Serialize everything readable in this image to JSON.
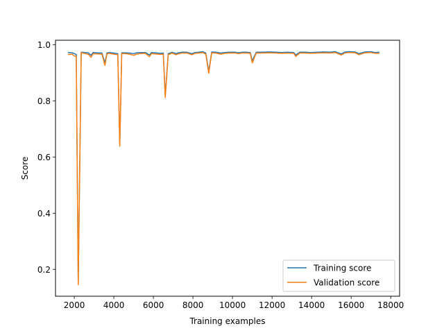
{
  "chart_data": {
    "type": "line",
    "title": "",
    "xlabel": "Training examples",
    "ylabel": "Score",
    "xlim": [
      1050,
      18450
    ],
    "ylim": [
      0.1043,
      1.0157
    ],
    "x_ticks": [
      2000,
      4000,
      6000,
      8000,
      10000,
      12000,
      14000,
      16000,
      18000
    ],
    "x_tick_labels": [
      "2000",
      "4000",
      "6000",
      "8000",
      "10000",
      "12000",
      "14000",
      "16000",
      "18000"
    ],
    "y_ticks": [
      0.2,
      0.4,
      0.6,
      0.8,
      1.0
    ],
    "y_tick_labels": [
      "0.2",
      "0.4",
      "0.6",
      "0.8",
      "1.0"
    ],
    "grid": false,
    "legend": {
      "placement": "lower-right",
      "entries": [
        "Training score",
        "Validation score"
      ]
    },
    "x": [
      1700,
      1900,
      2000,
      2100,
      2200,
      2350,
      2550,
      2700,
      2850,
      2950,
      3150,
      3400,
      3550,
      3650,
      3750,
      4000,
      4200,
      4300,
      4400,
      4550,
      4800,
      5000,
      5150,
      5350,
      5600,
      5800,
      5900,
      6100,
      6350,
      6500,
      6600,
      6750,
      6950,
      7150,
      7250,
      7450,
      7700,
      7950,
      8100,
      8300,
      8500,
      8650,
      8800,
      8950,
      9150,
      9400,
      9600,
      9850,
      10150,
      10300,
      10500,
      10700,
      10900,
      11000,
      11200,
      11500,
      11900,
      12200,
      12500,
      12800,
      13100,
      13200,
      13400,
      13700,
      13950,
      14300,
      14600,
      14900,
      15200,
      15300,
      15500,
      15700,
      15900,
      16200,
      16400,
      16700,
      17000,
      17200,
      17400
    ],
    "series": [
      {
        "name": "Training score",
        "color": "#1f77b4",
        "values": [
          0.972,
          0.971,
          0.968,
          0.965,
          0.15,
          0.973,
          0.972,
          0.971,
          0.962,
          0.972,
          0.971,
          0.97,
          0.935,
          0.97,
          0.972,
          0.97,
          0.968,
          0.645,
          0.971,
          0.971,
          0.97,
          0.968,
          0.971,
          0.972,
          0.972,
          0.963,
          0.972,
          0.971,
          0.969,
          0.97,
          0.82,
          0.968,
          0.973,
          0.968,
          0.971,
          0.973,
          0.973,
          0.968,
          0.972,
          0.973,
          0.975,
          0.97,
          0.905,
          0.974,
          0.973,
          0.97,
          0.972,
          0.973,
          0.973,
          0.971,
          0.973,
          0.973,
          0.972,
          0.942,
          0.973,
          0.973,
          0.974,
          0.973,
          0.972,
          0.973,
          0.972,
          0.963,
          0.973,
          0.973,
          0.972,
          0.973,
          0.974,
          0.973,
          0.975,
          0.972,
          0.967,
          0.974,
          0.975,
          0.974,
          0.968,
          0.974,
          0.975,
          0.972,
          0.973
        ]
      },
      {
        "name": "Validation score",
        "color": "#ff7f0e",
        "values": [
          0.965,
          0.966,
          0.96,
          0.958,
          0.145,
          0.972,
          0.968,
          0.966,
          0.955,
          0.968,
          0.967,
          0.966,
          0.926,
          0.967,
          0.969,
          0.966,
          0.964,
          0.638,
          0.968,
          0.968,
          0.966,
          0.962,
          0.966,
          0.968,
          0.969,
          0.957,
          0.968,
          0.967,
          0.965,
          0.966,
          0.812,
          0.964,
          0.97,
          0.964,
          0.967,
          0.97,
          0.97,
          0.964,
          0.969,
          0.97,
          0.972,
          0.966,
          0.898,
          0.971,
          0.97,
          0.966,
          0.969,
          0.97,
          0.97,
          0.968,
          0.97,
          0.97,
          0.969,
          0.935,
          0.97,
          0.97,
          0.971,
          0.97,
          0.969,
          0.97,
          0.969,
          0.958,
          0.97,
          0.97,
          0.969,
          0.97,
          0.971,
          0.97,
          0.972,
          0.969,
          0.963,
          0.971,
          0.972,
          0.971,
          0.964,
          0.971,
          0.972,
          0.969,
          0.969
        ]
      }
    ]
  }
}
